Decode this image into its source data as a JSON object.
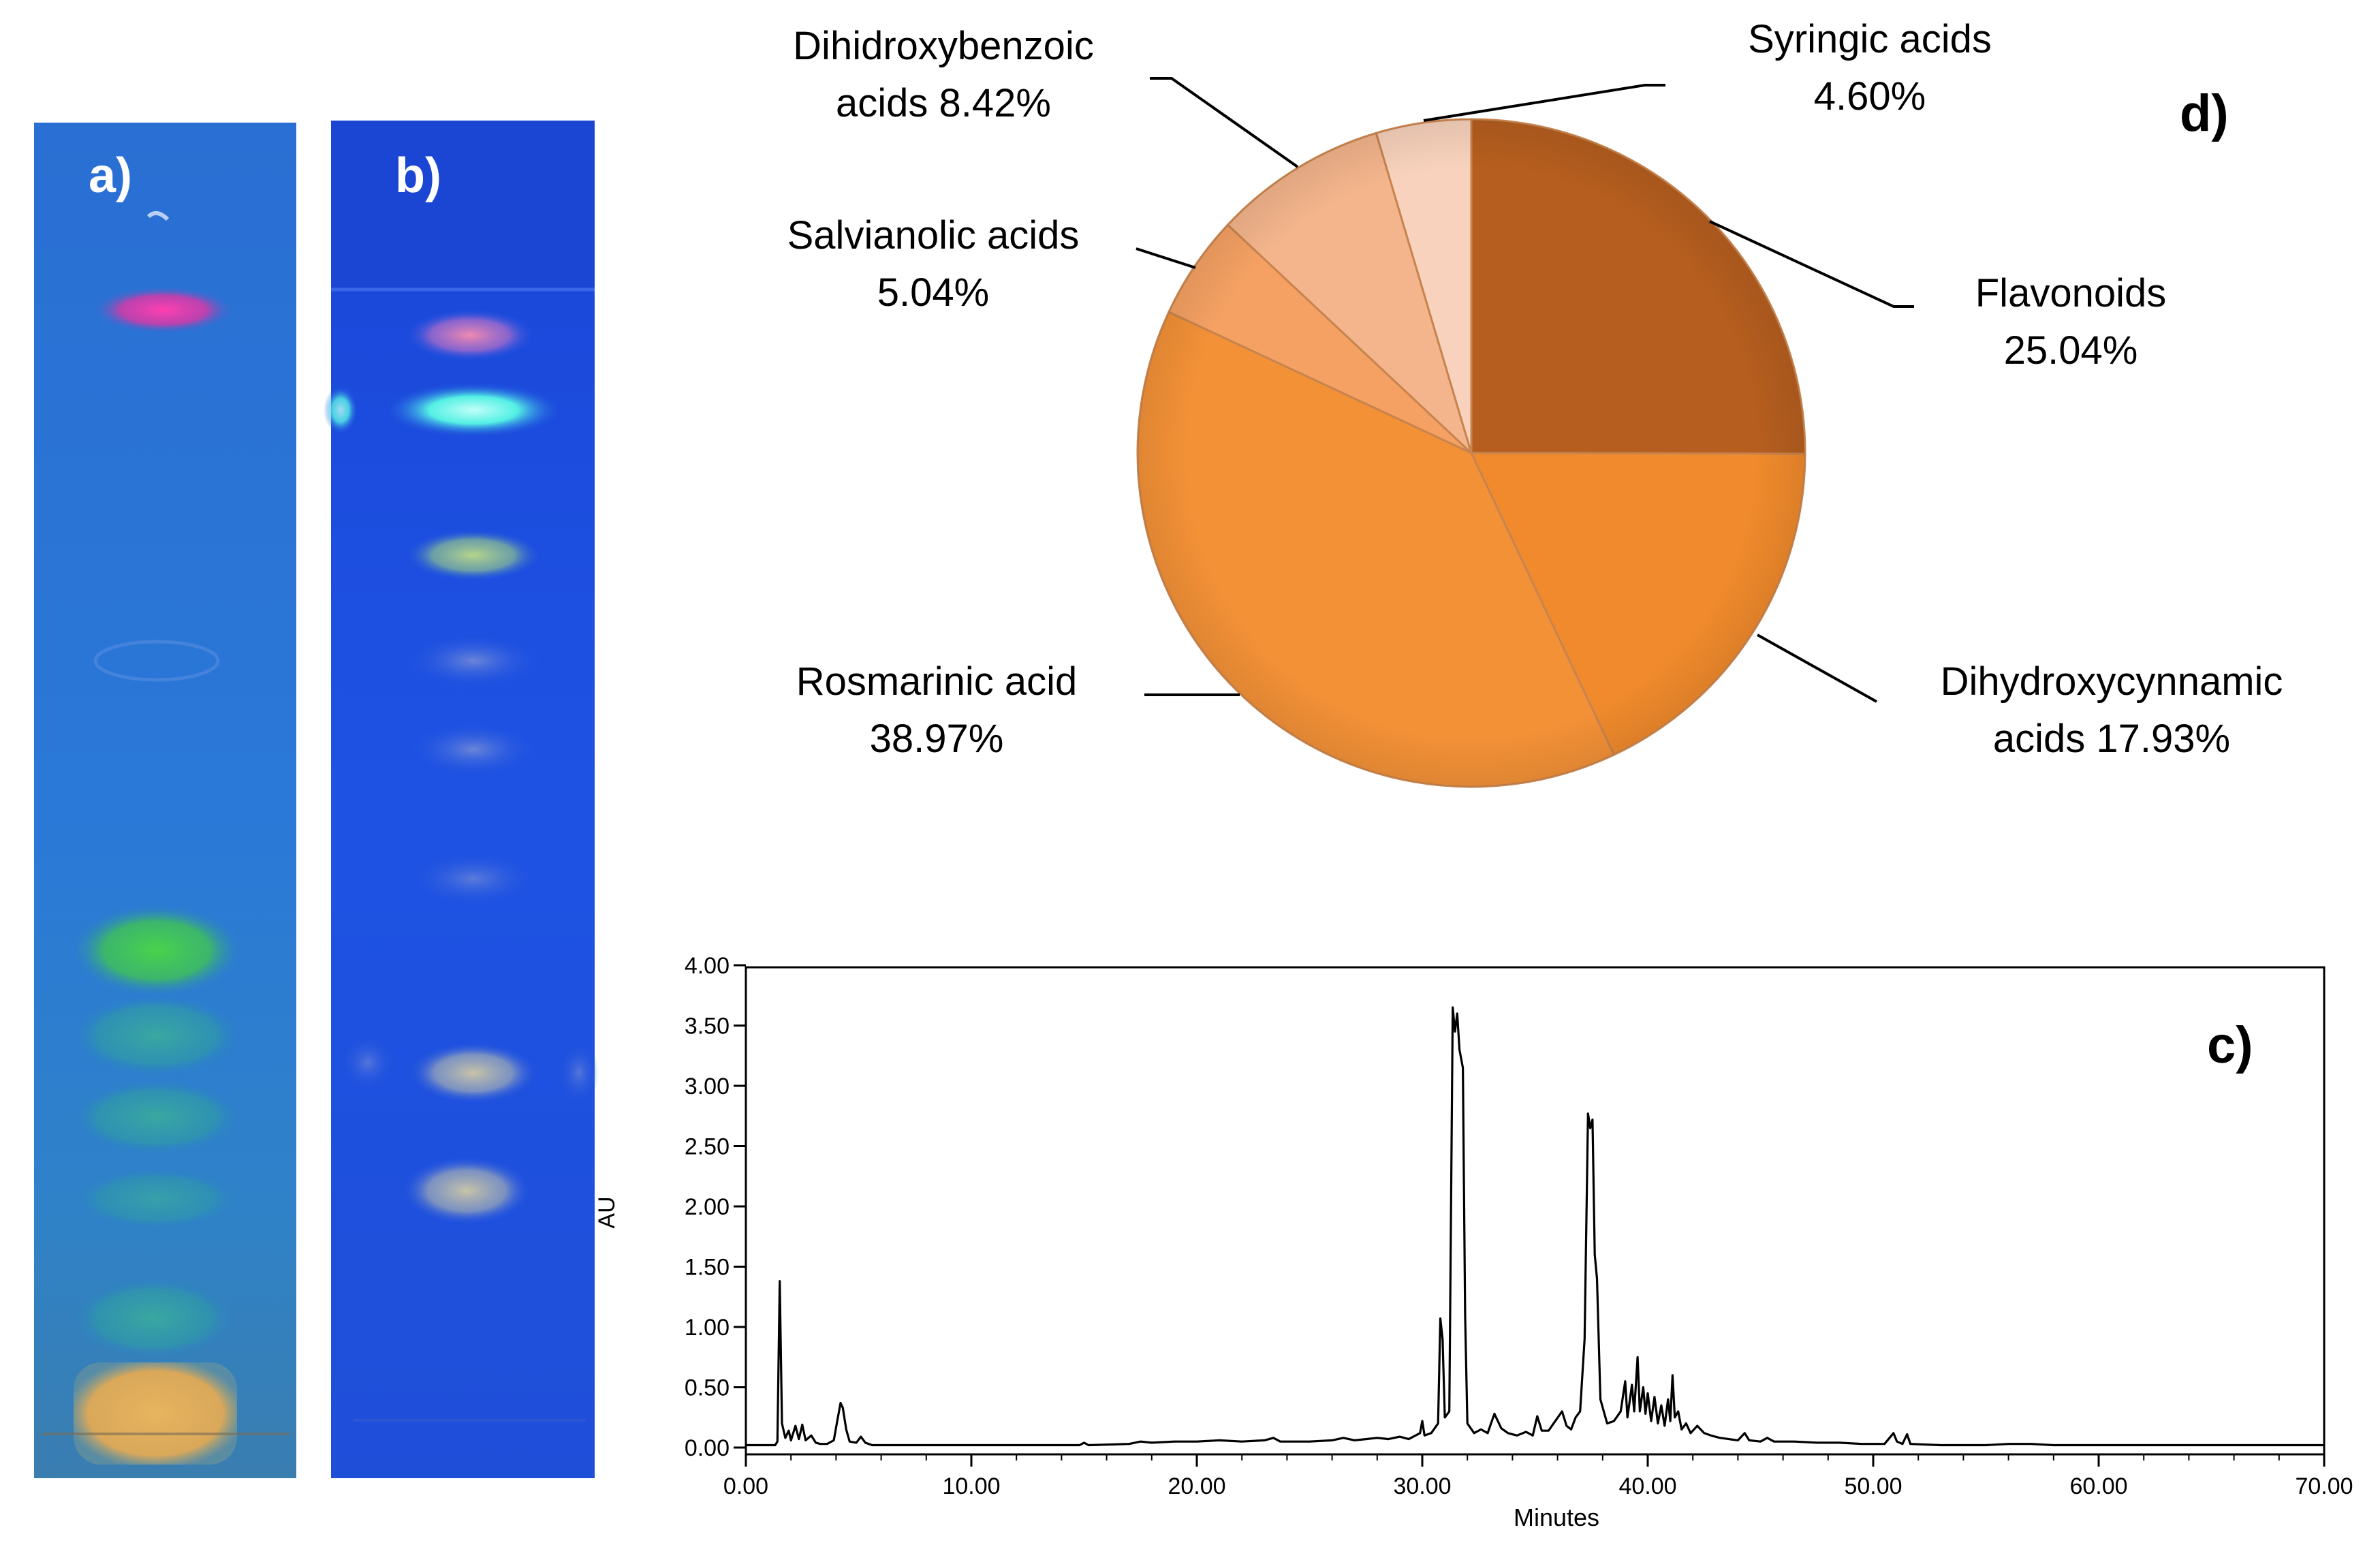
{
  "panels": {
    "a": {
      "label": "a)"
    },
    "b": {
      "label": "b)"
    },
    "c": {
      "label": "c)"
    },
    "d": {
      "label": "d)"
    }
  },
  "colors": {
    "plate_a_bg": "#2a73d6",
    "plate_b_bg": "#1d4fe0",
    "slice_flavonoids": "#b65e1f",
    "slice_dihydroxycinnamic": "#f08a2c",
    "slice_rosmarinic": "#f39137",
    "slice_salvianolic": "#f5a163",
    "slice_dihidroxybenzoic": "#f4b58c",
    "slice_syringic": "#f8d2bc"
  },
  "chart_data": [
    {
      "type": "pie",
      "panel": "d",
      "title": "",
      "slices": [
        {
          "key": "flavonoids",
          "label_lines": [
            "Flavonoids",
            "25.04%"
          ],
          "name": "Flavonoids",
          "value": 25.04
        },
        {
          "key": "dihydroxycinnamic",
          "label_lines": [
            "Dihydroxycynnamic",
            "acids 17.93%"
          ],
          "name": "Dihydroxycynnamic acids",
          "value": 17.93
        },
        {
          "key": "rosmarinic",
          "label_lines": [
            "Rosmarinic acid",
            "38.97%"
          ],
          "name": "Rosmarinic acid",
          "value": 38.97
        },
        {
          "key": "salvianolic",
          "label_lines": [
            "Salvianolic acids",
            "5.04%"
          ],
          "name": "Salvianolic acids",
          "value": 5.04
        },
        {
          "key": "dihidroxybenzoic",
          "label_lines": [
            "Dihidroxybenzoic",
            "acids 8.42%"
          ],
          "name": "Dihidroxybenzoic acids",
          "value": 8.42
        },
        {
          "key": "syringic",
          "label_lines": [
            "Syringic acids",
            "4.60%"
          ],
          "name": "Syringic acids",
          "value": 4.6
        }
      ]
    },
    {
      "type": "line",
      "panel": "c",
      "title": "",
      "xlabel": "Minutes",
      "ylabel": "AU",
      "xlim": [
        0,
        70
      ],
      "ylim": [
        0,
        4
      ],
      "xticks": [
        "0.00",
        "10.00",
        "20.00",
        "30.00",
        "40.00",
        "50.00",
        "60.00",
        "70.00"
      ],
      "yticks": [
        "0.00",
        "0.50",
        "1.00",
        "1.50",
        "2.00",
        "2.50",
        "3.00",
        "3.50",
        "4.00"
      ],
      "series": [
        {
          "name": "chromatogram",
          "points": [
            [
              0,
              0.02
            ],
            [
              1.3,
              0.02
            ],
            [
              1.4,
              0.05
            ],
            [
              1.5,
              1.38
            ],
            [
              1.6,
              0.2
            ],
            [
              1.75,
              0.08
            ],
            [
              1.9,
              0.14
            ],
            [
              2.0,
              0.06
            ],
            [
              2.2,
              0.18
            ],
            [
              2.35,
              0.07
            ],
            [
              2.5,
              0.19
            ],
            [
              2.65,
              0.06
            ],
            [
              2.9,
              0.1
            ],
            [
              3.1,
              0.04
            ],
            [
              3.3,
              0.03
            ],
            [
              3.6,
              0.03
            ],
            [
              3.9,
              0.06
            ],
            [
              4.05,
              0.22
            ],
            [
              4.2,
              0.37
            ],
            [
              4.3,
              0.33
            ],
            [
              4.45,
              0.15
            ],
            [
              4.6,
              0.05
            ],
            [
              4.9,
              0.04
            ],
            [
              5.1,
              0.09
            ],
            [
              5.3,
              0.04
            ],
            [
              5.6,
              0.02
            ],
            [
              8.0,
              0.02
            ],
            [
              9.5,
              0.02
            ],
            [
              12.0,
              0.02
            ],
            [
              14.8,
              0.02
            ],
            [
              15.0,
              0.04
            ],
            [
              15.2,
              0.02
            ],
            [
              17.0,
              0.03
            ],
            [
              17.5,
              0.05
            ],
            [
              18.0,
              0.04
            ],
            [
              19.0,
              0.05
            ],
            [
              20.0,
              0.05
            ],
            [
              21.0,
              0.06
            ],
            [
              22.0,
              0.05
            ],
            [
              23.0,
              0.06
            ],
            [
              23.4,
              0.08
            ],
            [
              23.7,
              0.05
            ],
            [
              25.0,
              0.05
            ],
            [
              26.0,
              0.06
            ],
            [
              26.5,
              0.08
            ],
            [
              27.0,
              0.06
            ],
            [
              27.5,
              0.07
            ],
            [
              28.0,
              0.08
            ],
            [
              28.5,
              0.07
            ],
            [
              29.0,
              0.09
            ],
            [
              29.4,
              0.07
            ],
            [
              29.7,
              0.1
            ],
            [
              29.9,
              0.12
            ],
            [
              30.0,
              0.22
            ],
            [
              30.1,
              0.1
            ],
            [
              30.4,
              0.12
            ],
            [
              30.7,
              0.2
            ],
            [
              30.8,
              1.07
            ],
            [
              30.9,
              0.9
            ],
            [
              31.0,
              0.25
            ],
            [
              31.2,
              0.3
            ],
            [
              31.35,
              3.65
            ],
            [
              31.45,
              3.45
            ],
            [
              31.55,
              3.6
            ],
            [
              31.65,
              3.3
            ],
            [
              31.8,
              3.15
            ],
            [
              31.9,
              1.1
            ],
            [
              32.0,
              0.2
            ],
            [
              32.3,
              0.12
            ],
            [
              32.6,
              0.15
            ],
            [
              32.9,
              0.12
            ],
            [
              33.2,
              0.28
            ],
            [
              33.5,
              0.16
            ],
            [
              33.8,
              0.12
            ],
            [
              34.2,
              0.1
            ],
            [
              34.6,
              0.13
            ],
            [
              34.9,
              0.1
            ],
            [
              35.1,
              0.26
            ],
            [
              35.3,
              0.14
            ],
            [
              35.6,
              0.14
            ],
            [
              35.9,
              0.22
            ],
            [
              36.2,
              0.3
            ],
            [
              36.4,
              0.18
            ],
            [
              36.6,
              0.15
            ],
            [
              36.8,
              0.25
            ],
            [
              37.0,
              0.3
            ],
            [
              37.2,
              0.9
            ],
            [
              37.35,
              2.77
            ],
            [
              37.45,
              2.65
            ],
            [
              37.55,
              2.72
            ],
            [
              37.65,
              1.6
            ],
            [
              37.75,
              1.4
            ],
            [
              37.9,
              0.4
            ],
            [
              38.2,
              0.2
            ],
            [
              38.5,
              0.22
            ],
            [
              38.8,
              0.3
            ],
            [
              39.0,
              0.55
            ],
            [
              39.1,
              0.25
            ],
            [
              39.3,
              0.52
            ],
            [
              39.4,
              0.3
            ],
            [
              39.55,
              0.75
            ],
            [
              39.65,
              0.3
            ],
            [
              39.8,
              0.5
            ],
            [
              39.9,
              0.28
            ],
            [
              40.0,
              0.45
            ],
            [
              40.15,
              0.22
            ],
            [
              40.3,
              0.42
            ],
            [
              40.45,
              0.2
            ],
            [
              40.6,
              0.35
            ],
            [
              40.75,
              0.18
            ],
            [
              40.9,
              0.4
            ],
            [
              41.0,
              0.22
            ],
            [
              41.1,
              0.6
            ],
            [
              41.2,
              0.25
            ],
            [
              41.35,
              0.3
            ],
            [
              41.5,
              0.15
            ],
            [
              41.7,
              0.2
            ],
            [
              41.9,
              0.12
            ],
            [
              42.2,
              0.18
            ],
            [
              42.5,
              0.12
            ],
            [
              42.8,
              0.1
            ],
            [
              43.2,
              0.08
            ],
            [
              43.6,
              0.07
            ],
            [
              44.0,
              0.06
            ],
            [
              44.3,
              0.12
            ],
            [
              44.5,
              0.06
            ],
            [
              45.0,
              0.05
            ],
            [
              45.3,
              0.08
            ],
            [
              45.6,
              0.05
            ],
            [
              46.5,
              0.05
            ],
            [
              47.5,
              0.04
            ],
            [
              48.5,
              0.04
            ],
            [
              49.5,
              0.03
            ],
            [
              50.5,
              0.03
            ],
            [
              50.9,
              0.12
            ],
            [
              51.05,
              0.05
            ],
            [
              51.3,
              0.03
            ],
            [
              51.5,
              0.11
            ],
            [
              51.65,
              0.03
            ],
            [
              53.0,
              0.02
            ],
            [
              55.0,
              0.02
            ],
            [
              56.0,
              0.03
            ],
            [
              57.0,
              0.03
            ],
            [
              58.0,
              0.02
            ],
            [
              70.0,
              0.02
            ]
          ]
        }
      ]
    }
  ]
}
